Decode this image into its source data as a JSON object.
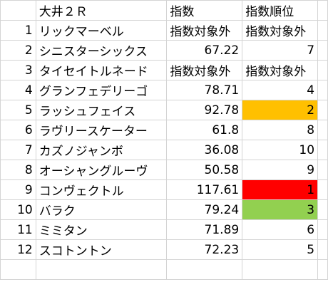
{
  "header": {
    "row_num": "",
    "race": "大井２Ｒ",
    "index": "指数",
    "rank": "指数順位"
  },
  "colors": {
    "rank_1": "#ff0000",
    "rank_2": "#ffc000",
    "rank_3": "#92d050",
    "gridline": "#d4d4d4"
  },
  "rows": [
    {
      "no": "1",
      "name": "リックマーベル",
      "index": "指数対象外",
      "rank": "指数対象外",
      "highlight": ""
    },
    {
      "no": "2",
      "name": "シニスターシックス",
      "index": "67.22",
      "rank": "7",
      "highlight": ""
    },
    {
      "no": "3",
      "name": "タイセイトルネード",
      "index": "指数対象外",
      "rank": "指数対象外",
      "highlight": ""
    },
    {
      "no": "4",
      "name": "グランフェデリーゴ",
      "index": "78.71",
      "rank": "4",
      "highlight": ""
    },
    {
      "no": "5",
      "name": "ラッシュフェイス",
      "index": "92.78",
      "rank": "2",
      "highlight": "#ffc000"
    },
    {
      "no": "6",
      "name": "ラヴリースケーター",
      "index": "61.8",
      "rank": "8",
      "highlight": ""
    },
    {
      "no": "7",
      "name": "カズノジャンボ",
      "index": "36.08",
      "rank": "10",
      "highlight": ""
    },
    {
      "no": "8",
      "name": "オーシャングルーヴ",
      "index": "50.58",
      "rank": "9",
      "highlight": ""
    },
    {
      "no": "9",
      "name": "コンヴェクトル",
      "index": "117.61",
      "rank": "1",
      "highlight": "#ff0000"
    },
    {
      "no": "10",
      "name": "バラク",
      "index": "79.24",
      "rank": "3",
      "highlight": "#92d050"
    },
    {
      "no": "11",
      "name": "ミミタン",
      "index": "71.89",
      "rank": "6",
      "highlight": ""
    },
    {
      "no": "12",
      "name": "スコトントン",
      "index": "72.23",
      "rank": "5",
      "highlight": ""
    }
  ]
}
